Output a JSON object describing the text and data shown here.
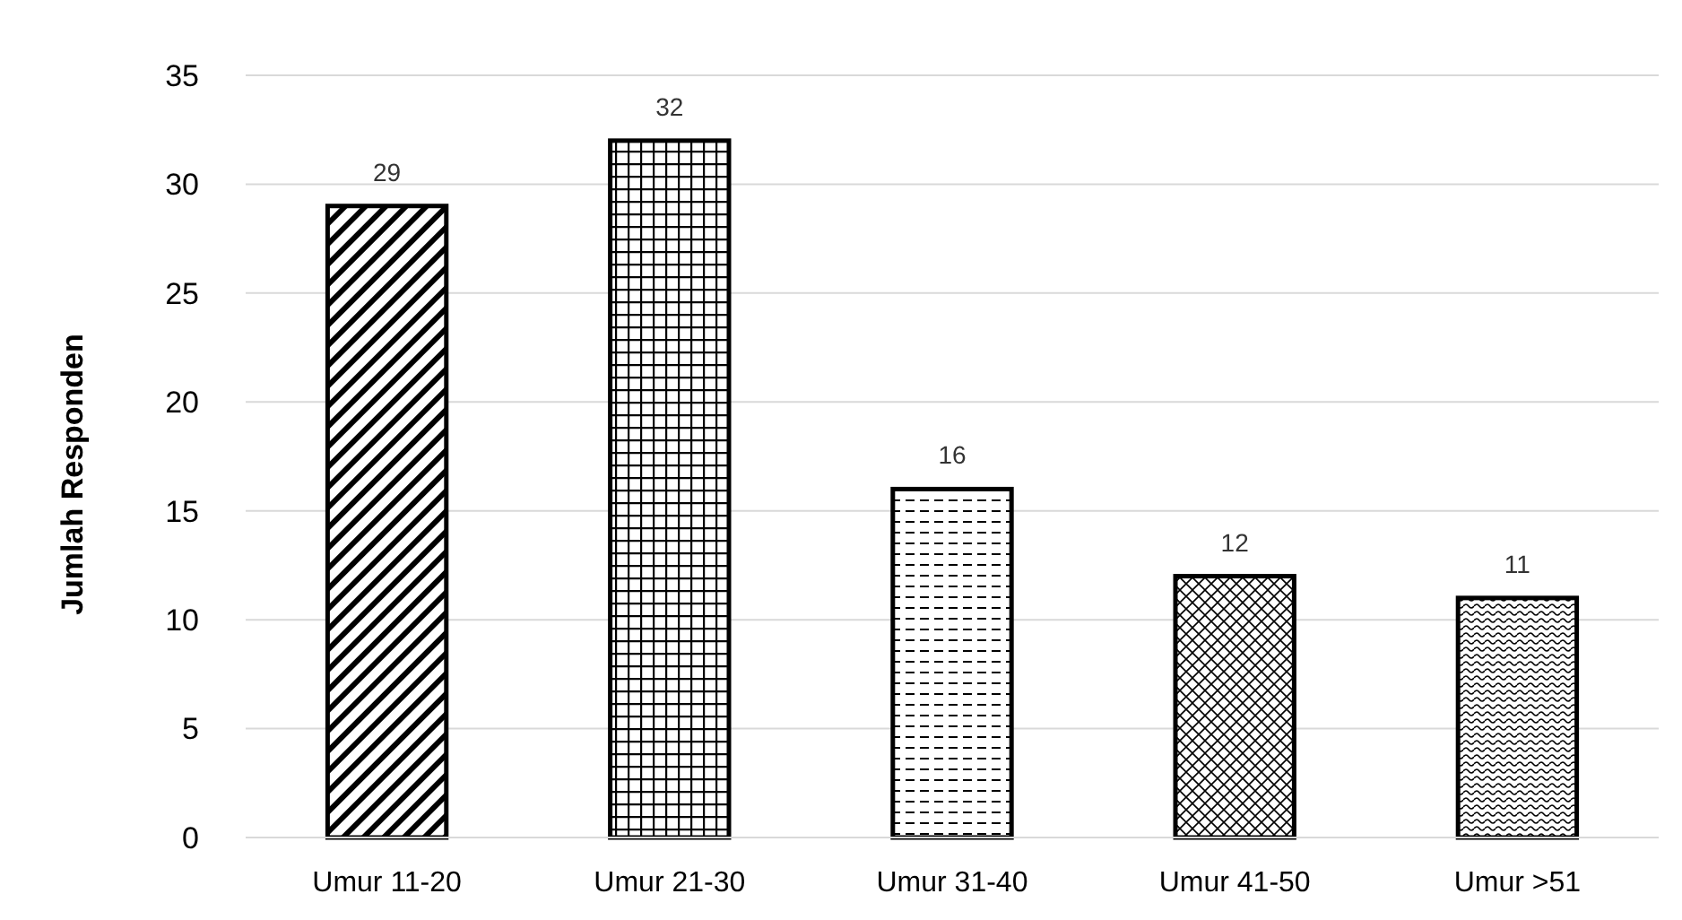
{
  "chart_data": {
    "type": "bar",
    "ylabel": "Jumlah Responden",
    "categories": [
      "Umur 11-20",
      "Umur 21-30",
      "Umur 31-40",
      "Umur 41-50",
      "Umur >51"
    ],
    "values": [
      29,
      32,
      16,
      12,
      11
    ],
    "color": "#000000",
    "ylim": [
      0,
      35
    ],
    "yticks": [
      0,
      5,
      10,
      15,
      20,
      25,
      30,
      35
    ],
    "grid": "y",
    "data_labels": true
  }
}
